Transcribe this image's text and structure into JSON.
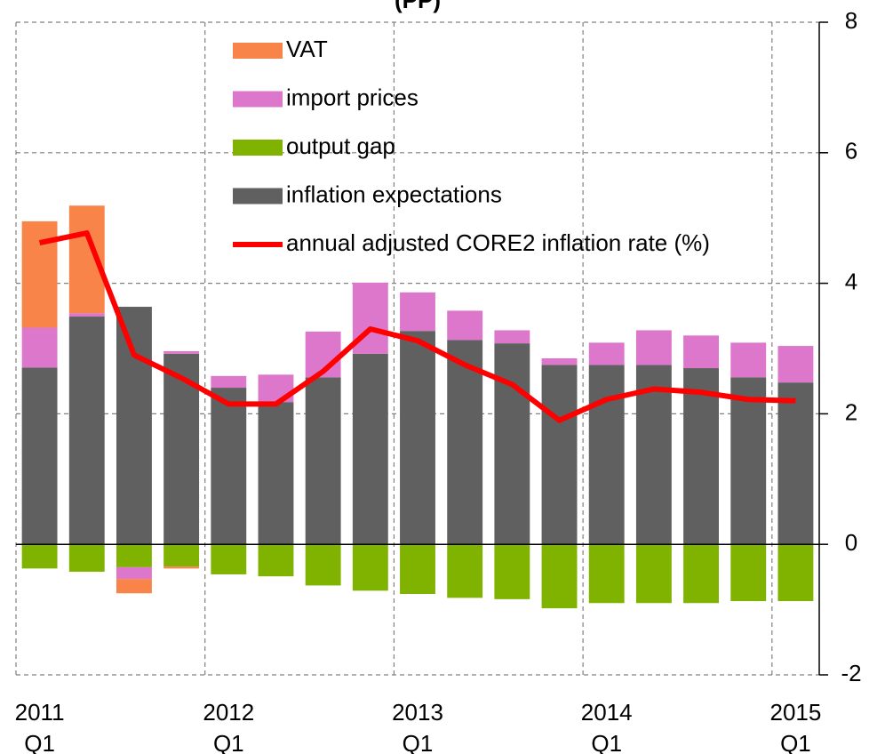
{
  "chart_data": {
    "type": "bar",
    "title": "(PP)",
    "categories": [
      [
        "2011",
        "Q1"
      ],
      null,
      null,
      null,
      [
        "2012",
        "Q1"
      ],
      null,
      null,
      null,
      [
        "2013",
        "Q1"
      ],
      null,
      null,
      null,
      [
        "2014",
        "Q1"
      ],
      null,
      null,
      null,
      [
        "2015",
        "Q1"
      ]
    ],
    "series": [
      {
        "name": "inflation expectations",
        "color": "#606060",
        "values": [
          2.71,
          3.49,
          3.64,
          2.92,
          2.4,
          2.18,
          2.56,
          2.92,
          3.27,
          3.13,
          3.08,
          2.75,
          2.75,
          2.75,
          2.7,
          2.56,
          2.48
        ]
      },
      {
        "name": "output gap",
        "color": "#7fb300",
        "values": [
          -0.37,
          -0.42,
          -0.35,
          -0.34,
          -0.46,
          -0.49,
          -0.63,
          -0.71,
          -0.76,
          -0.82,
          -0.84,
          -0.98,
          -0.9,
          -0.9,
          -0.9,
          -0.87,
          -0.87
        ]
      },
      {
        "name": "import prices",
        "color": "#dd77cc",
        "values": [
          0.61,
          0.05,
          -0.18,
          0.04,
          0.18,
          0.42,
          0.7,
          1.09,
          0.59,
          0.45,
          0.2,
          0.1,
          0.34,
          0.53,
          0.5,
          0.53,
          0.56
        ]
      },
      {
        "name": "VAT",
        "color": "#f9844a",
        "values": [
          1.63,
          1.65,
          -0.22,
          -0.03,
          0,
          0,
          0,
          0,
          0,
          0,
          0,
          0,
          0,
          0,
          0,
          0,
          0
        ]
      },
      {
        "name": "annual adjusted CORE2 inflation rate (%)",
        "type": "line",
        "color": "#ff0000",
        "values": [
          4.62,
          4.77,
          2.9,
          2.55,
          2.15,
          2.15,
          2.65,
          3.3,
          3.12,
          2.75,
          2.45,
          1.9,
          2.22,
          2.38,
          2.33,
          2.22,
          2.2
        ]
      }
    ],
    "ylim": [
      -2,
      8
    ],
    "yticks": [
      -2,
      0,
      2,
      4,
      6,
      8
    ],
    "grid": true,
    "axis_side": "right"
  }
}
